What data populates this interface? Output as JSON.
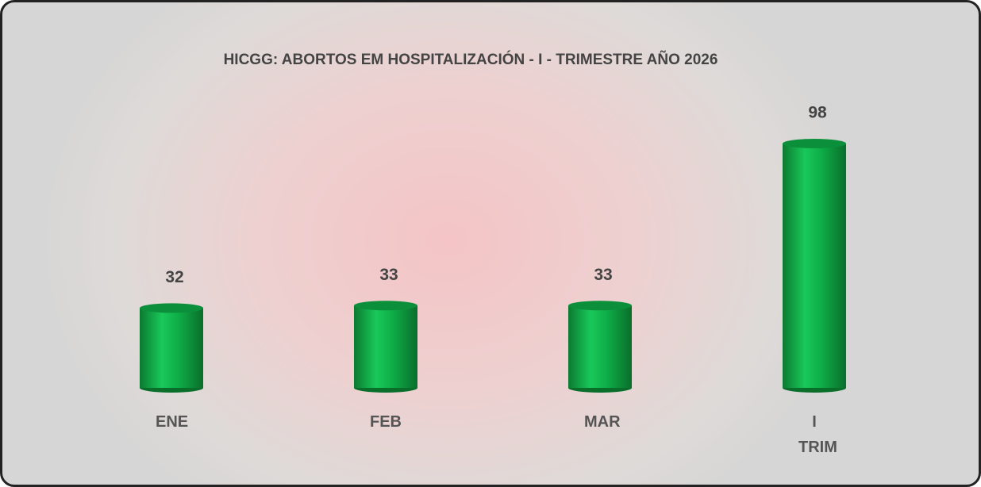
{
  "chart_data": {
    "type": "bar",
    "title": "HICGG: ABORTOS EM HOSPITALIZACIÓN - I - TRIMESTRE AÑO 2026",
    "categories": [
      "ENE",
      "FEB",
      "MAR",
      "I TRIM"
    ],
    "values": [
      32,
      33,
      33,
      98
    ],
    "color": "#0fae48"
  }
}
